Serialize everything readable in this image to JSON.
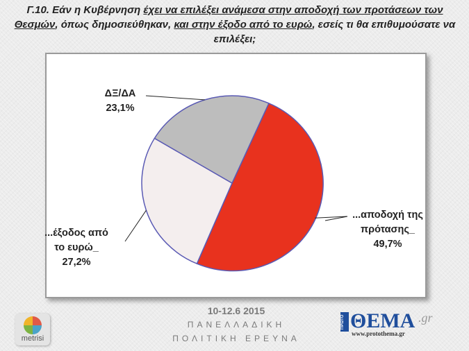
{
  "title": {
    "part1": "Γ.10. Εάν η Κυβέρνηση ",
    "part2_underlined": "έχει να επιλέξει ανάμεσα στην αποδοχή των προτάσεων των Θεσμών",
    "part3": ", όπως δημοσιεύθηκαν, ",
    "part4_underlined": "και στην έξοδο από το ευρώ",
    "part5": ", εσείς τι θα επιθυμούσατε να επιλέξει;"
  },
  "chart_data": {
    "type": "pie",
    "slices": [
      {
        "label_lines": [
          "...αποδοχή της",
          "πρότασης_"
        ],
        "value_label": "49,7%",
        "value": 49.7,
        "color": "#e8321e"
      },
      {
        "label_lines": [
          "...έξοδος από",
          "το ευρώ_"
        ],
        "value_label": "27,2%",
        "value": 27.2,
        "color": "#f4eeee"
      },
      {
        "label_lines": [
          "ΔΞ/ΔΑ"
        ],
        "value_label": "23,1%",
        "value": 23.1,
        "color": "#bdbdbd"
      }
    ],
    "edge_color": "#5a5ab4",
    "start_angle_deg": 24,
    "direction": "clockwise"
  },
  "footer": {
    "date": "10-12.6 2015",
    "line1": "ΠΑΝΕΛΛΑΔΙΚΗ",
    "line2": "ΠΟΛΙΤΙΚΗ ΕΡΕΥΝΑ"
  },
  "logos": {
    "metrisi": "metrisi",
    "thema_prefix": "ΠΡΩΤΟ",
    "thema_name": "ΘΕΜΑ",
    "thema_suffix": ".gr",
    "thema_url": "www.protothema.gr"
  }
}
